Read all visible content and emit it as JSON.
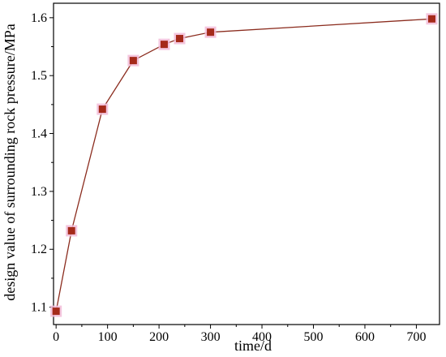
{
  "chart_data": {
    "type": "line",
    "title": "",
    "xlabel": "time/d",
    "ylabel": "design value of surrounding rock pressure/MPa",
    "xlim": [
      -5,
      745
    ],
    "ylim": [
      1.07,
      1.625
    ],
    "xticks": [
      0,
      100,
      200,
      300,
      400,
      500,
      600,
      700
    ],
    "yticks": [
      1.1,
      1.2,
      1.3,
      1.4,
      1.5,
      1.6
    ],
    "grid": false,
    "legend": "none",
    "series": [
      {
        "x": [
          0,
          30,
          90,
          150,
          210,
          240,
          300,
          730
        ],
        "y": [
          1.093,
          1.232,
          1.442,
          1.526,
          1.554,
          1.564,
          1.575,
          1.598
        ],
        "marker": "square",
        "line_color": "#8B2C1E",
        "marker_color": "#A52A1A"
      }
    ]
  }
}
